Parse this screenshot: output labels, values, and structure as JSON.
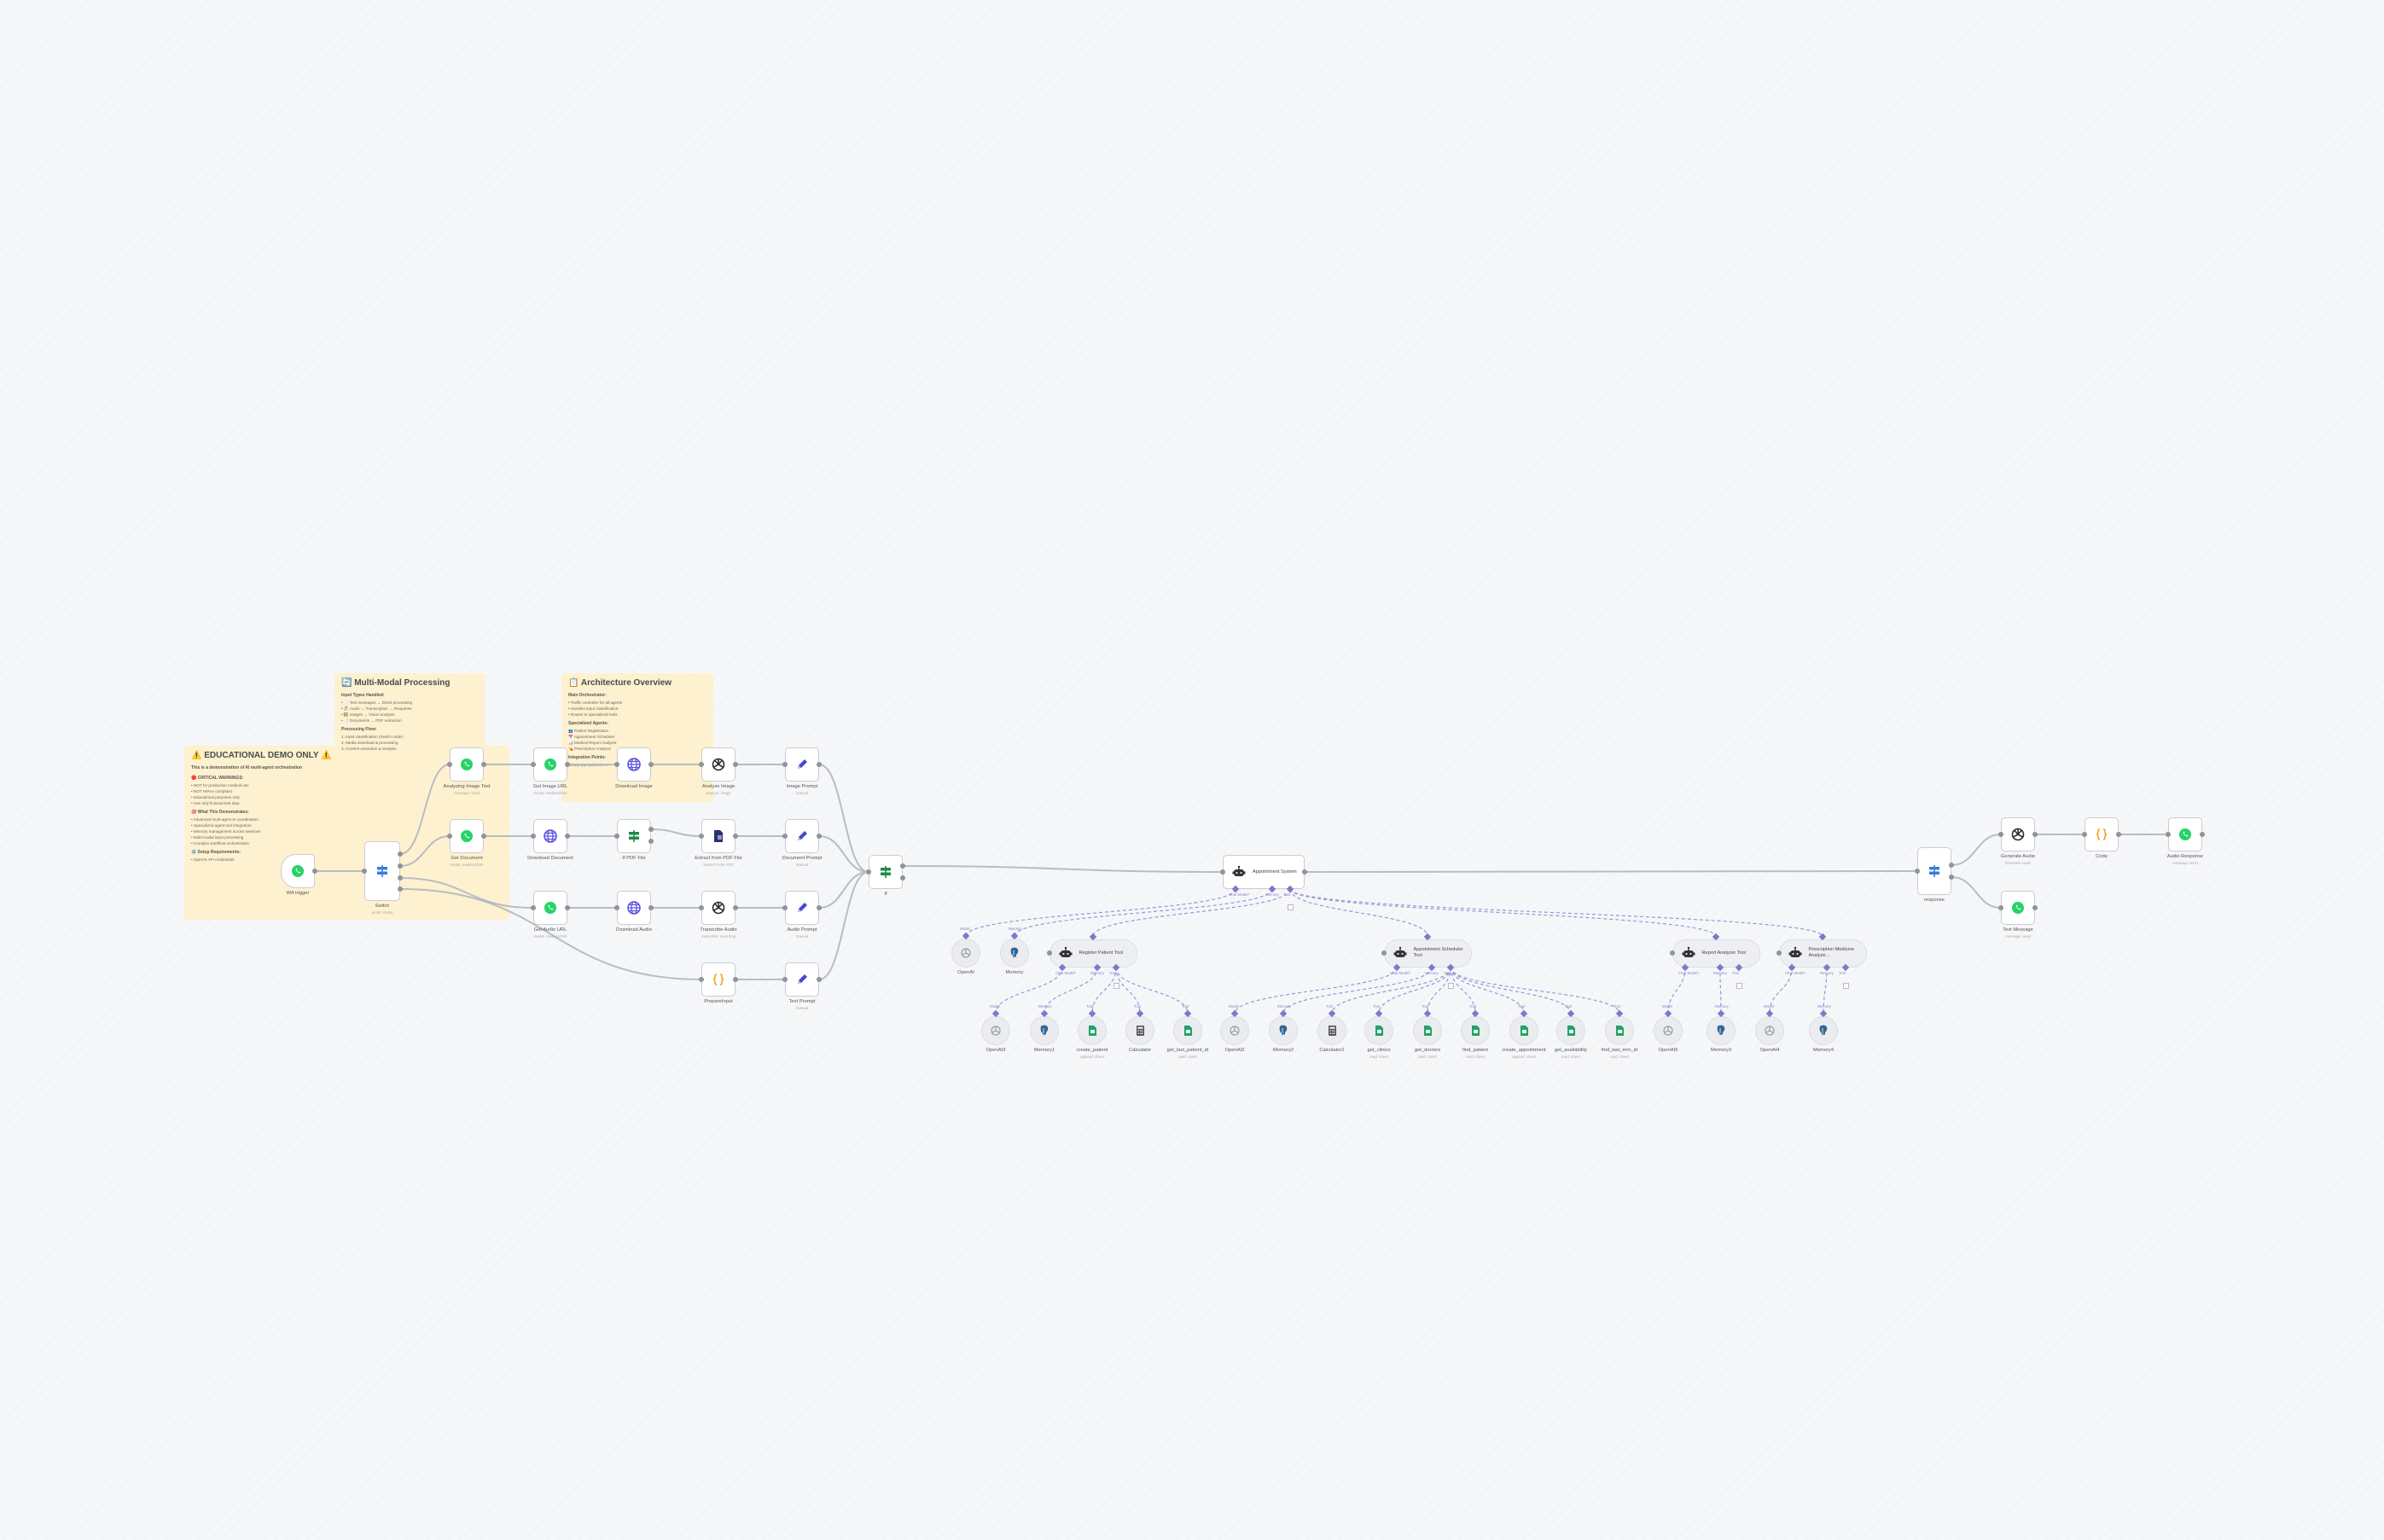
{
  "canvas": {
    "background": "#f6f7f9",
    "edge_color": "#b9bcc2",
    "ai_edge_color": "#9a96d4"
  },
  "sticky_notes": [
    {
      "id": "educational",
      "title": "⚠️ EDUCATIONAL DEMO ONLY ⚠️",
      "intro": "This is a demonstration of AI multi-agent orchestration",
      "blocks": [
        {
          "heading": "🛑 CRITICAL WARNINGS:",
          "items": [
            "• NOT for production medical use",
            "• NOT HIPAA compliant",
            "• Educational purposes only",
            "• Use only fictional test data"
          ]
        },
        {
          "heading": "🎯 What This Demonstrates:",
          "items": [
            "• Advanced multi-agent AI coordination",
            "• Specialized agent tool integration",
            "• Memory management across sessions",
            "• Multi-modal input processing",
            "• Complex workflow orchestration"
          ]
        },
        {
          "heading": "⚙️ Setup Requirements:",
          "items": [
            "• OpenAI API credentials"
          ]
        }
      ]
    },
    {
      "id": "multi_modal",
      "title": "🔄 Multi-Modal Processing",
      "intro": "",
      "blocks": [
        {
          "heading": "Input Types Handled:",
          "items": [
            "• 📄 Text messages → Direct processing",
            "• 🎵 Audio → Transcription → Response",
            "• 🖼️ Images → Vision analysis",
            "• 📑 Documents → PDF extraction"
          ]
        },
        {
          "heading": "Processing Flow:",
          "items": [
            "1. Input classification (Switch node)",
            "2. Media download & processing",
            "3. Content extraction & analysis"
          ]
        }
      ]
    },
    {
      "id": "architecture",
      "title": "📋 Architecture Overview",
      "intro": "",
      "blocks": [
        {
          "heading": "Main Orchestrator:",
          "items": [
            "• Traffic controller for all agents",
            "• Handles input classification",
            "• Routes to specialized tools"
          ]
        },
        {
          "heading": "Specialized Agents:",
          "items": [
            "👥 Patient Registration",
            "📅 Appointment Scheduler",
            "📊 Medical Report Analyzer",
            "💊 Prescription Analyzer"
          ]
        },
        {
          "heading": "Integration Points:",
          "items": [
            "WhatsApp Business API"
          ]
        }
      ]
    }
  ],
  "nodes": [
    {
      "id": "wa_trigger",
      "name": "WA trigger",
      "subtitle": "",
      "icon": "whatsapp"
    },
    {
      "id": "switch",
      "name": "Switch",
      "subtitle": "mode: Rules",
      "icon": "switch"
    },
    {
      "id": "analyzing_image_text",
      "name": "Analyzing Image Text",
      "subtitle": "message: send",
      "icon": "whatsapp"
    },
    {
      "id": "get_document",
      "name": "Get Document",
      "subtitle": "media: mediaUrlGet",
      "icon": "whatsapp"
    },
    {
      "id": "get_image_url",
      "name": "Get Image URL",
      "subtitle": "media: mediaUrlGet",
      "icon": "whatsapp"
    },
    {
      "id": "download_image",
      "name": "Download Image",
      "subtitle": "",
      "icon": "globe"
    },
    {
      "id": "analyze_image",
      "name": "Analyze Image",
      "subtitle": "analyze: image",
      "icon": "openai"
    },
    {
      "id": "image_prompt",
      "name": "Image Prompt",
      "subtitle": "manual",
      "icon": "pencil"
    },
    {
      "id": "download_document",
      "name": "Download Document",
      "subtitle": "",
      "icon": "globe"
    },
    {
      "id": "if_pdf",
      "name": "If PDF File",
      "subtitle": "",
      "icon": "if"
    },
    {
      "id": "extract_pdf",
      "name": "Extract from PDF File",
      "subtitle": "Extract From PDF",
      "icon": "pdf"
    },
    {
      "id": "document_prompt",
      "name": "Document Prompt",
      "subtitle": "manual",
      "icon": "pencil"
    },
    {
      "id": "get_audio_url",
      "name": "Get Audio URL",
      "subtitle": "media: mediaUrlGet",
      "icon": "whatsapp"
    },
    {
      "id": "download_audio",
      "name": "Download Audio",
      "subtitle": "",
      "icon": "globe"
    },
    {
      "id": "transcribe_audio",
      "name": "Transcribe Audio",
      "subtitle": "transcribe: recording",
      "icon": "openai"
    },
    {
      "id": "audio_prompt",
      "name": "Audio Prompt",
      "subtitle": "manual",
      "icon": "pencil"
    },
    {
      "id": "prepare_input",
      "name": "PrepareInput",
      "subtitle": "",
      "icon": "code"
    },
    {
      "id": "text_prompt",
      "name": "Text Prompt",
      "subtitle": "manual",
      "icon": "pencil"
    },
    {
      "id": "if",
      "name": "If",
      "subtitle": "",
      "icon": "if"
    },
    {
      "id": "appointment_system",
      "name": "Appointment System",
      "subtitle": "",
      "icon": "robot"
    },
    {
      "id": "openai",
      "name": "OpenAI",
      "subtitle": "",
      "icon": "openai-model"
    },
    {
      "id": "memory",
      "name": "Memory",
      "subtitle": "",
      "icon": "postgres"
    },
    {
      "id": "register_patient",
      "name": "Register Patient Tool",
      "subtitle": "",
      "icon": "robot"
    },
    {
      "id": "appointment_scheduler",
      "name": "Appointment Scheduler Tool",
      "subtitle": "",
      "icon": "robot"
    },
    {
      "id": "report_analyzer",
      "name": "Report Analyzer Tool",
      "subtitle": "",
      "icon": "robot"
    },
    {
      "id": "prescription_analyzer",
      "name": "Prescription Medicine Analyze...",
      "subtitle": "",
      "icon": "robot"
    },
    {
      "id": "openai3",
      "name": "OpenAI3",
      "subtitle": "",
      "icon": "openai-model"
    },
    {
      "id": "memory1",
      "name": "Memory1",
      "subtitle": "",
      "icon": "postgres"
    },
    {
      "id": "create_patient",
      "name": "create_patient",
      "subtitle": "append: sheet",
      "icon": "sheets"
    },
    {
      "id": "calculator",
      "name": "Calculator",
      "subtitle": "",
      "icon": "calculator"
    },
    {
      "id": "get_last_patient_id",
      "name": "get_last_patient_id",
      "subtitle": "read: sheet",
      "icon": "sheets"
    },
    {
      "id": "openai2",
      "name": "OpenAI2",
      "subtitle": "",
      "icon": "openai-model"
    },
    {
      "id": "memory2",
      "name": "Memory2",
      "subtitle": "",
      "icon": "postgres"
    },
    {
      "id": "calculator1",
      "name": "Calculator1",
      "subtitle": "",
      "icon": "calculator"
    },
    {
      "id": "get_clinics",
      "name": "get_clinics",
      "subtitle": "read: sheet",
      "icon": "sheets"
    },
    {
      "id": "get_doctors",
      "name": "get_doctors",
      "subtitle": "read: sheet",
      "icon": "sheets"
    },
    {
      "id": "find_patient",
      "name": "find_patient",
      "subtitle": "read: sheet",
      "icon": "sheets"
    },
    {
      "id": "create_appointment",
      "name": "create_appointment",
      "subtitle": "append: sheet",
      "icon": "sheets"
    },
    {
      "id": "get_availability",
      "name": "get_availability",
      "subtitle": "read: sheet",
      "icon": "sheets"
    },
    {
      "id": "find_last_mrn_id",
      "name": "find_last_mrn_id",
      "subtitle": "read: sheet",
      "icon": "sheets"
    },
    {
      "id": "openai5",
      "name": "OpenAI5",
      "subtitle": "",
      "icon": "openai-model"
    },
    {
      "id": "memory3",
      "name": "Memory3",
      "subtitle": "",
      "icon": "postgres"
    },
    {
      "id": "openai4",
      "name": "OpenAI4",
      "subtitle": "",
      "icon": "openai-model"
    },
    {
      "id": "memory4",
      "name": "Memory4",
      "subtitle": "",
      "icon": "postgres"
    },
    {
      "id": "response",
      "name": "response",
      "subtitle": "",
      "icon": "switch"
    },
    {
      "id": "generate_audio",
      "name": "Generate Audio",
      "subtitle": "Generate Audio",
      "icon": "openai"
    },
    {
      "id": "code",
      "name": "Code",
      "subtitle": "",
      "icon": "code"
    },
    {
      "id": "audio_response",
      "name": "Audio Response",
      "subtitle": "message: send",
      "icon": "whatsapp"
    },
    {
      "id": "text_message",
      "name": "Text Message",
      "subtitle": "message: send",
      "icon": "whatsapp"
    }
  ],
  "connections": [
    [
      "wa_trigger",
      "switch",
      0
    ],
    [
      "switch",
      "analyzing_image_text",
      0
    ],
    [
      "switch",
      "get_document",
      1
    ],
    [
      "switch",
      "get_audio_url",
      2
    ],
    [
      "switch",
      "prepare_input",
      3
    ],
    [
      "analyzing_image_text",
      "get_image_url",
      0
    ],
    [
      "get_image_url",
      "download_image",
      0
    ],
    [
      "download_image",
      "analyze_image",
      0
    ],
    [
      "analyze_image",
      "image_prompt",
      0
    ],
    [
      "image_prompt",
      "if",
      0
    ],
    [
      "get_document",
      "download_document",
      0
    ],
    [
      "download_document",
      "if_pdf",
      0
    ],
    [
      "if_pdf",
      "extract_pdf",
      0
    ],
    [
      "extract_pdf",
      "document_prompt",
      0
    ],
    [
      "document_prompt",
      "if",
      0
    ],
    [
      "get_audio_url",
      "download_audio",
      0
    ],
    [
      "download_audio",
      "transcribe_audio",
      0
    ],
    [
      "transcribe_audio",
      "audio_prompt",
      0
    ],
    [
      "audio_prompt",
      "if",
      0
    ],
    [
      "prepare_input",
      "text_prompt",
      0
    ],
    [
      "text_prompt",
      "if",
      0
    ],
    [
      "if",
      "appointment_system",
      0
    ],
    [
      "appointment_system",
      "response",
      0
    ],
    [
      "response",
      "generate_audio",
      0
    ],
    [
      "response",
      "text_message",
      1
    ],
    [
      "generate_audio",
      "code",
      0
    ],
    [
      "code",
      "audio_response",
      0
    ]
  ],
  "ai_connections": [
    [
      "appointment_system",
      "model",
      "openai"
    ],
    [
      "appointment_system",
      "memory",
      "memory"
    ],
    [
      "appointment_system",
      "tool",
      "register_patient"
    ],
    [
      "appointment_system",
      "tool",
      "appointment_scheduler"
    ],
    [
      "appointment_system",
      "tool",
      "report_analyzer"
    ],
    [
      "appointment_system",
      "tool",
      "prescription_analyzer"
    ],
    [
      "register_patient",
      "model",
      "openai3"
    ],
    [
      "register_patient",
      "memory",
      "memory1"
    ],
    [
      "register_patient",
      "tool",
      "create_patient"
    ],
    [
      "register_patient",
      "tool",
      "calculator"
    ],
    [
      "register_patient",
      "tool",
      "get_last_patient_id"
    ],
    [
      "appointment_scheduler",
      "model",
      "openai2"
    ],
    [
      "appointment_scheduler",
      "memory",
      "memory2"
    ],
    [
      "appointment_scheduler",
      "tool",
      "calculator1"
    ],
    [
      "appointment_scheduler",
      "tool",
      "get_clinics"
    ],
    [
      "appointment_scheduler",
      "tool",
      "get_doctors"
    ],
    [
      "appointment_scheduler",
      "tool",
      "find_patient"
    ],
    [
      "appointment_scheduler",
      "tool",
      "create_appointment"
    ],
    [
      "appointment_scheduler",
      "tool",
      "get_availability"
    ],
    [
      "appointment_scheduler",
      "tool",
      "find_last_mrn_id"
    ],
    [
      "report_analyzer",
      "model",
      "openai5"
    ],
    [
      "report_analyzer",
      "memory",
      "memory3"
    ],
    [
      "prescription_analyzer",
      "model",
      "openai4"
    ],
    [
      "prescription_analyzer",
      "memory",
      "memory4"
    ]
  ],
  "handle_labels": {
    "chat_model": "Chat Model*",
    "memory": "Memory",
    "tool": "Tool",
    "model": "Model"
  }
}
